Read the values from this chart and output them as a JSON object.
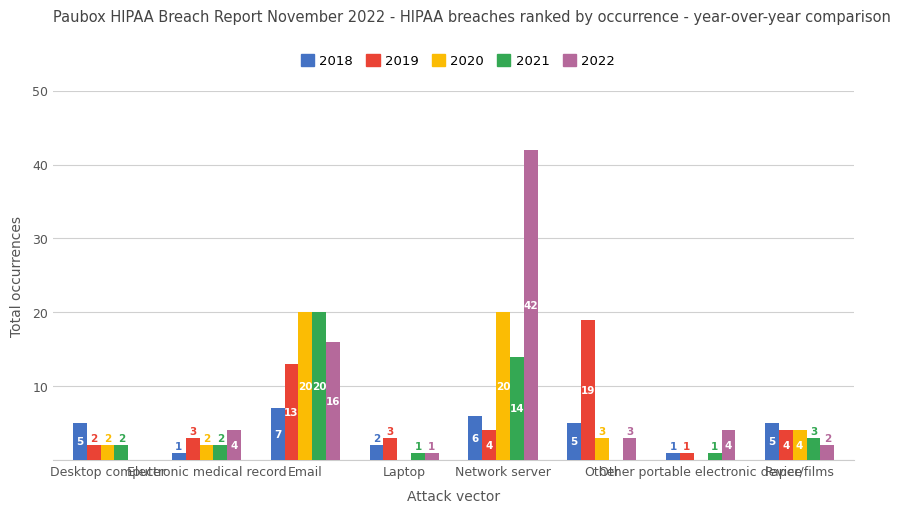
{
  "title": "Paubox HIPAA Breach Report November 2022 - HIPAA breaches ranked by occurrence - year-over-year comparison",
  "xlabel": "Attack vector",
  "ylabel": "Total occurrences",
  "categories": [
    "Desktop computer",
    "Electronic medical record",
    "Email",
    "Laptop",
    "Network server",
    "Other",
    "Other portable electronic device",
    "Paper/films"
  ],
  "years": [
    "2018",
    "2019",
    "2020",
    "2021",
    "2022"
  ],
  "colors": [
    "#4472C4",
    "#EA4335",
    "#FBBC04",
    "#34A853",
    "#B5699B"
  ],
  "data": {
    "2018": [
      5,
      1,
      7,
      2,
      6,
      5,
      1,
      5
    ],
    "2019": [
      2,
      3,
      13,
      3,
      4,
      19,
      1,
      4
    ],
    "2020": [
      2,
      2,
      20,
      0,
      20,
      3,
      0,
      4
    ],
    "2021": [
      2,
      2,
      20,
      1,
      14,
      0,
      1,
      3
    ],
    "2022": [
      0,
      4,
      16,
      1,
      42,
      3,
      4,
      2
    ]
  },
  "ylim": [
    0,
    50
  ],
  "yticks": [
    0,
    10,
    20,
    30,
    40,
    50
  ],
  "background_color": "#ffffff",
  "grid_color": "#d0d0d0",
  "title_fontsize": 10.5,
  "axis_label_fontsize": 10,
  "tick_fontsize": 9,
  "legend_fontsize": 9.5,
  "bar_label_fontsize": 7.5,
  "bar_width": 0.14
}
